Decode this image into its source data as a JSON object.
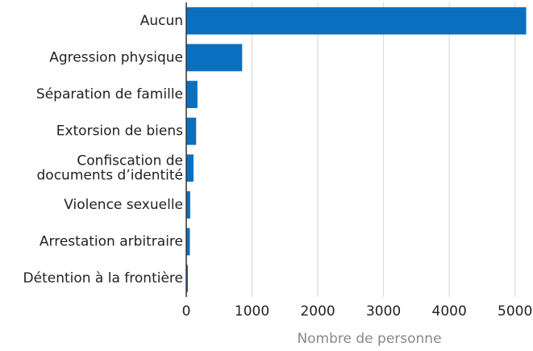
{
  "chart_data": {
    "type": "barh",
    "categories": [
      "Aucun",
      "Agression physique",
      "Séparation de famille",
      "Extorsion de biens",
      "Confiscation de\ndocuments d’identité",
      "Violence sexuelle",
      "Arrestation arbitraire",
      "Détention à la frontière"
    ],
    "values": [
      5170,
      850,
      170,
      150,
      110,
      60,
      55,
      25
    ],
    "color": "#0b6fbf",
    "xlabel": "Nombre de personne",
    "xlim": [
      0,
      5200
    ],
    "xticks": [
      0,
      1000,
      2000,
      3000,
      4000,
      5000
    ],
    "grid": true
  }
}
